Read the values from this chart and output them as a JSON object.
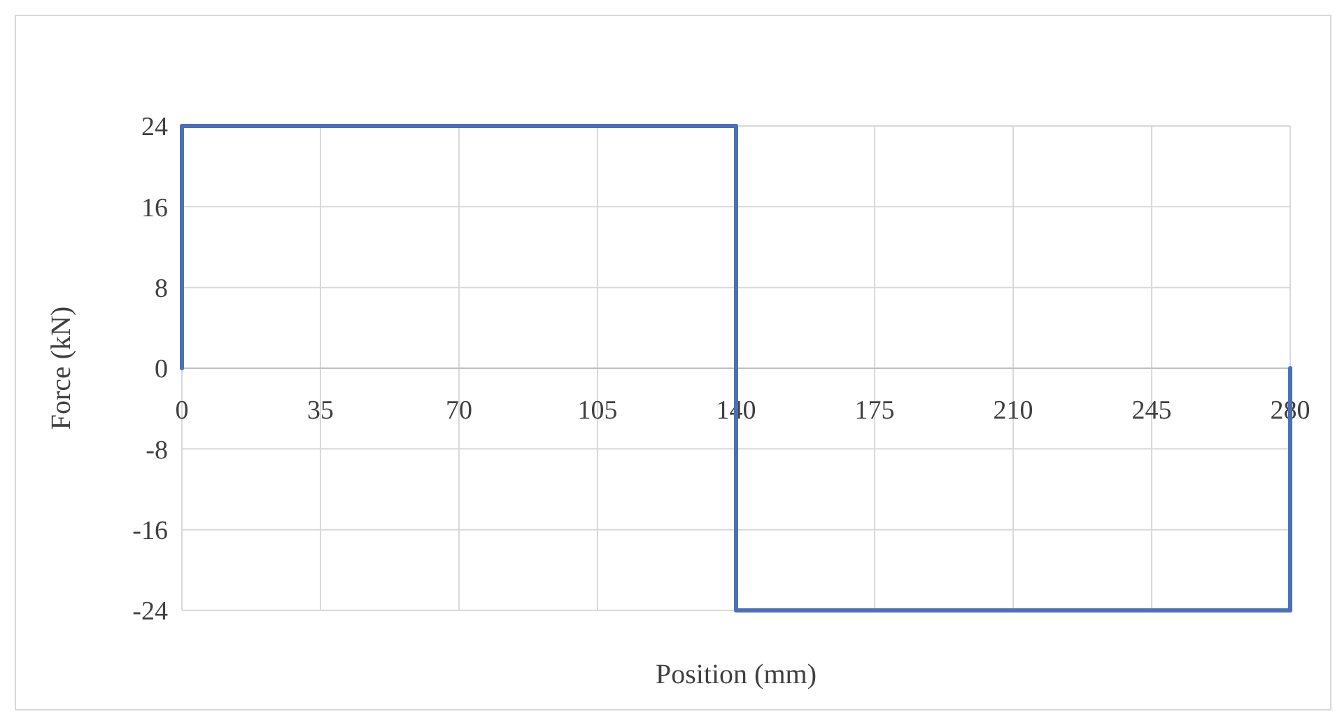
{
  "chart_data": {
    "type": "line",
    "xlabel": "Position (mm)",
    "ylabel": "Force (kN)",
    "x": [
      0,
      0,
      140,
      140,
      280,
      280
    ],
    "series": [
      {
        "color": "#4a70b8",
        "values": [
          0,
          24,
          24,
          -24,
          -24,
          0
        ]
      }
    ],
    "xlim": [
      0,
      280
    ],
    "xticks": [
      0,
      35,
      70,
      105,
      140,
      175,
      210,
      245,
      280
    ],
    "ylim": [
      -24,
      24
    ],
    "yticks": [
      -24,
      -16,
      -8,
      0,
      8,
      16,
      24
    ],
    "grid": true,
    "marker": "none",
    "line_style": "solid"
  }
}
